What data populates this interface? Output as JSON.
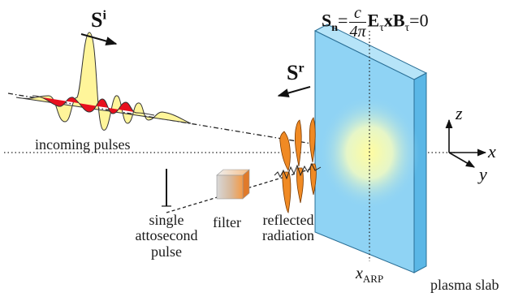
{
  "equation": {
    "lhs_symbol": "S",
    "lhs_sub": "n",
    "equals": "=",
    "numerator": "c",
    "denominator": "4π",
    "e_symbol": "E",
    "e_sub": "τ",
    "cross": "x",
    "b_symbol": "B",
    "b_sub": "τ",
    "rhs": "=0"
  },
  "incident_vector": {
    "symbol": "S",
    "sup": "i"
  },
  "reflected_vector": {
    "symbol": "S",
    "sup": "r"
  },
  "labels": {
    "incoming": "incoming pulses",
    "attosecond_line1": "single",
    "attosecond_line2": "attosecond",
    "attosecond_line3": "pulse",
    "filter": "filter",
    "reflected_line1": "reflected",
    "reflected_line2": "radiation",
    "plasma": "plasma slab",
    "arp_symbol": "x",
    "arp_sub": "ARP"
  },
  "axes": {
    "x": "x",
    "y": "y",
    "z": "z"
  },
  "colors": {
    "slab_face": "#8fd3f4",
    "slab_side": "#5bb7e6",
    "pulse_yellow": "#fff59a",
    "pulse_red": "#e8101e",
    "reflected_orange": "#f08a24",
    "filter_gray": "#cfcfcf",
    "filter_orange": "#f59a45"
  }
}
